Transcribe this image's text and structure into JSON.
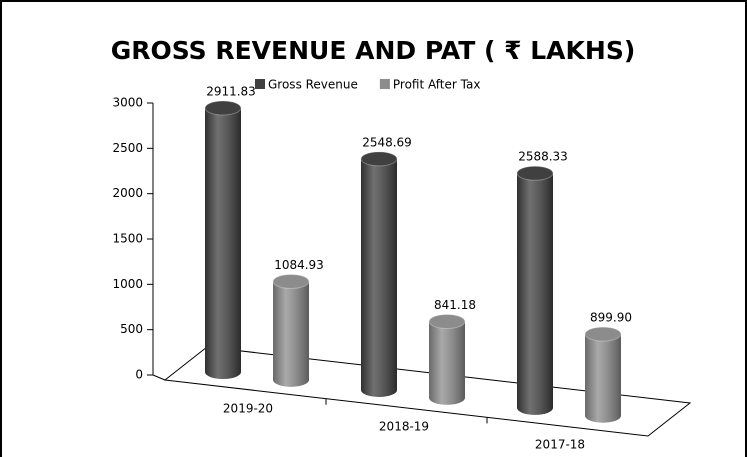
{
  "chart_data": {
    "type": "cylinder",
    "title": "GROSS REVENUE AND PAT ( ₹ LAKHS)",
    "categories": [
      "2019-20",
      "2018-19",
      "2017-18"
    ],
    "series": [
      {
        "name": "Gross Revenue",
        "color": "#404040",
        "values": [
          2911.83,
          2548.69,
          2588.33
        ]
      },
      {
        "name": "Profit After Tax",
        "color": "#8c8c8c",
        "values": [
          1084.93,
          841.18,
          899.9
        ],
        "value_labels": [
          "1084.93",
          "841.18",
          "899.90"
        ]
      }
    ],
    "ylim": [
      0,
      3000
    ],
    "yticks": [
      0,
      500,
      1000,
      1500,
      2000,
      2500,
      3000
    ]
  }
}
